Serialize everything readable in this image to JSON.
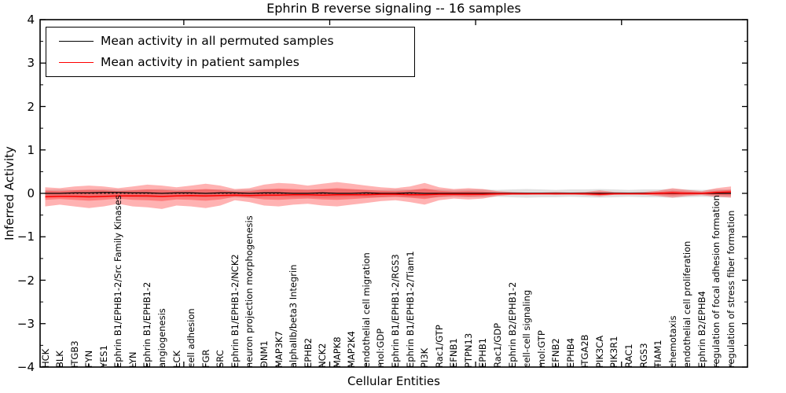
{
  "chart_data": {
    "type": "line",
    "title": "Ephrin B reverse signaling -- 16 samples",
    "xlabel": "Cellular Entities",
    "ylabel": "Inferred Activity",
    "ylim": [
      -4,
      4
    ],
    "yticks": [
      4,
      3,
      2,
      1,
      0,
      -1,
      -2,
      -3,
      -4
    ],
    "grid": false,
    "legend": {
      "position": "upper left",
      "entries": [
        {
          "label": "Mean activity in all permuted samples",
          "color": "#000000"
        },
        {
          "label": "Mean activity in patient samples",
          "color": "#ff0000"
        }
      ]
    },
    "zero_line": {
      "y": 0,
      "style": "dotted",
      "color": "#000000"
    },
    "categories": [
      "HCK",
      "BLK",
      "ITGB3",
      "FYN",
      "YES1",
      "Ephrin B1/EPHB1-2/Src Family Kinases",
      "LYN",
      "Ephrin B1/EPHB1-2",
      "angiogenesis",
      "LCK",
      "cell adhesion",
      "FGR",
      "SRC",
      "Ephrin B1/EPHB1-2/NCK2",
      "neuron projection morphogenesis",
      "DNM1",
      "MAP3K7",
      "alphaIIb/beta3 Integrin",
      "EPHB2",
      "NCK2",
      "MAPK8",
      "MAP2K4",
      "endothelial cell migration",
      "mol:GDP",
      "Ephrin B1/EPHB1-2/RGS3",
      "Ephrin B1/EPHB1-2/Tiam1",
      "PI3K",
      "Rac1/GTP",
      "EFNB1",
      "PTPN13",
      "EPHB1",
      "Rac1/GDP",
      "Ephrin B2/EPHB1-2",
      "cell-cell signaling",
      "mol:GTP",
      "EFNB2",
      "EPHB4",
      "ITGA2B",
      "PIK3CA",
      "PIK3R1",
      "RAC1",
      "RGS3",
      "TIAM1",
      "chemotaxis",
      "endothelial cell proliferation",
      "Ephrin B2/EPHB4",
      "regulation of focal adhesion formation",
      "regulation of stress fiber formation"
    ],
    "series": [
      {
        "name": "Mean activity in all permuted samples",
        "color": "#000000",
        "values": [
          0.0,
          0.0,
          0.01,
          0.01,
          0.02,
          0.02,
          0.01,
          0.01,
          0.0,
          0.01,
          0.01,
          0.0,
          0.01,
          0.01,
          0.0,
          0.01,
          0.01,
          0.0,
          0.0,
          0.01,
          0.0,
          0.0,
          0.01,
          0.0,
          0.0,
          0.01,
          0.0,
          0.0,
          0.0,
          0.0,
          0.0,
          0.0,
          0.0,
          0.0,
          0.0,
          0.0,
          0.0,
          0.0,
          0.0,
          0.0,
          0.0,
          0.0,
          0.0,
          0.0,
          0.0,
          0.0,
          0.0,
          0.0
        ]
      },
      {
        "name": "Mean activity in patient samples",
        "color": "#ff0000",
        "values": [
          -0.08,
          -0.07,
          -0.07,
          -0.08,
          -0.07,
          -0.06,
          -0.06,
          -0.06,
          -0.07,
          -0.06,
          -0.05,
          -0.06,
          -0.05,
          -0.04,
          -0.05,
          -0.04,
          -0.04,
          -0.03,
          -0.03,
          -0.04,
          -0.03,
          -0.03,
          -0.03,
          -0.02,
          -0.02,
          -0.03,
          -0.03,
          -0.02,
          -0.02,
          -0.02,
          -0.02,
          -0.01,
          -0.01,
          -0.01,
          -0.01,
          -0.01,
          -0.01,
          -0.01,
          -0.02,
          -0.01,
          -0.01,
          -0.01,
          0.0,
          0.01,
          0.0,
          0.0,
          0.02,
          0.03
        ]
      }
    ],
    "bands": [
      {
        "name": "permuted-samples-range",
        "color": "#000000",
        "opacity": 0.12,
        "upper": [
          0.08,
          0.09,
          0.08,
          0.09,
          0.1,
          0.09,
          0.08,
          0.09,
          0.1,
          0.09,
          0.08,
          0.09,
          0.09,
          0.08,
          0.09,
          0.1,
          0.09,
          0.08,
          0.09,
          0.09,
          0.1,
          0.09,
          0.08,
          0.08,
          0.09,
          0.09,
          0.1,
          0.09,
          0.08,
          0.09,
          0.09,
          0.08,
          0.09,
          0.1,
          0.09,
          0.08,
          0.09,
          0.09,
          0.1,
          0.09,
          0.08,
          0.09,
          0.09,
          0.1,
          0.09,
          0.08,
          0.09,
          0.09
        ],
        "lower": [
          -0.09,
          -0.08,
          -0.09,
          -0.1,
          -0.09,
          -0.08,
          -0.09,
          -0.1,
          -0.09,
          -0.08,
          -0.09,
          -0.09,
          -0.08,
          -0.09,
          -0.1,
          -0.09,
          -0.08,
          -0.09,
          -0.09,
          -0.1,
          -0.09,
          -0.08,
          -0.09,
          -0.09,
          -0.08,
          -0.09,
          -0.1,
          -0.09,
          -0.08,
          -0.09,
          -0.09,
          -0.08,
          -0.09,
          -0.1,
          -0.09,
          -0.09,
          -0.08,
          -0.09,
          -0.1,
          -0.09,
          -0.08,
          -0.09,
          -0.09,
          -0.1,
          -0.09,
          -0.08,
          -0.09,
          -0.09
        ]
      },
      {
        "name": "patient-samples-range-outer",
        "color": "#ff0000",
        "opacity": 0.3,
        "upper": [
          0.14,
          0.12,
          0.16,
          0.18,
          0.16,
          0.12,
          0.16,
          0.2,
          0.18,
          0.14,
          0.18,
          0.22,
          0.18,
          0.1,
          0.12,
          0.2,
          0.24,
          0.22,
          0.18,
          0.22,
          0.26,
          0.22,
          0.18,
          0.14,
          0.12,
          0.16,
          0.24,
          0.14,
          0.1,
          0.12,
          0.1,
          0.05,
          0.03,
          0.02,
          0.02,
          0.03,
          0.02,
          0.03,
          0.07,
          0.03,
          0.02,
          0.03,
          0.06,
          0.12,
          0.08,
          0.05,
          0.12,
          0.16
        ],
        "lower": [
          -0.3,
          -0.26,
          -0.3,
          -0.34,
          -0.3,
          -0.24,
          -0.3,
          -0.32,
          -0.36,
          -0.28,
          -0.3,
          -0.34,
          -0.28,
          -0.16,
          -0.2,
          -0.28,
          -0.3,
          -0.26,
          -0.24,
          -0.28,
          -0.3,
          -0.26,
          -0.22,
          -0.18,
          -0.16,
          -0.2,
          -0.26,
          -0.16,
          -0.12,
          -0.14,
          -0.12,
          -0.06,
          -0.03,
          -0.03,
          -0.02,
          -0.03,
          -0.02,
          -0.04,
          -0.07,
          -0.03,
          -0.02,
          -0.03,
          -0.06,
          -0.1,
          -0.06,
          -0.04,
          -0.08,
          -0.1
        ]
      },
      {
        "name": "patient-samples-range-inner",
        "color": "#ff0000",
        "opacity": 0.3,
        "upper": [
          0.06,
          0.05,
          0.07,
          0.08,
          0.07,
          0.05,
          0.07,
          0.09,
          0.08,
          0.06,
          0.08,
          0.1,
          0.08,
          0.04,
          0.05,
          0.09,
          0.11,
          0.1,
          0.08,
          0.1,
          0.12,
          0.1,
          0.08,
          0.06,
          0.05,
          0.07,
          0.11,
          0.06,
          0.04,
          0.05,
          0.04,
          0.02,
          0.01,
          0.01,
          0.01,
          0.01,
          0.01,
          0.01,
          0.03,
          0.01,
          0.01,
          0.01,
          0.03,
          0.06,
          0.04,
          0.02,
          0.06,
          0.08
        ],
        "lower": [
          -0.15,
          -0.13,
          -0.15,
          -0.17,
          -0.15,
          -0.12,
          -0.15,
          -0.16,
          -0.18,
          -0.14,
          -0.15,
          -0.17,
          -0.14,
          -0.08,
          -0.1,
          -0.14,
          -0.15,
          -0.13,
          -0.12,
          -0.14,
          -0.15,
          -0.13,
          -0.11,
          -0.09,
          -0.08,
          -0.1,
          -0.13,
          -0.08,
          -0.06,
          -0.07,
          -0.06,
          -0.03,
          -0.02,
          -0.02,
          -0.01,
          -0.02,
          -0.01,
          -0.02,
          -0.04,
          -0.02,
          -0.01,
          -0.02,
          -0.03,
          -0.05,
          -0.03,
          -0.02,
          -0.04,
          -0.05
        ]
      }
    ]
  }
}
